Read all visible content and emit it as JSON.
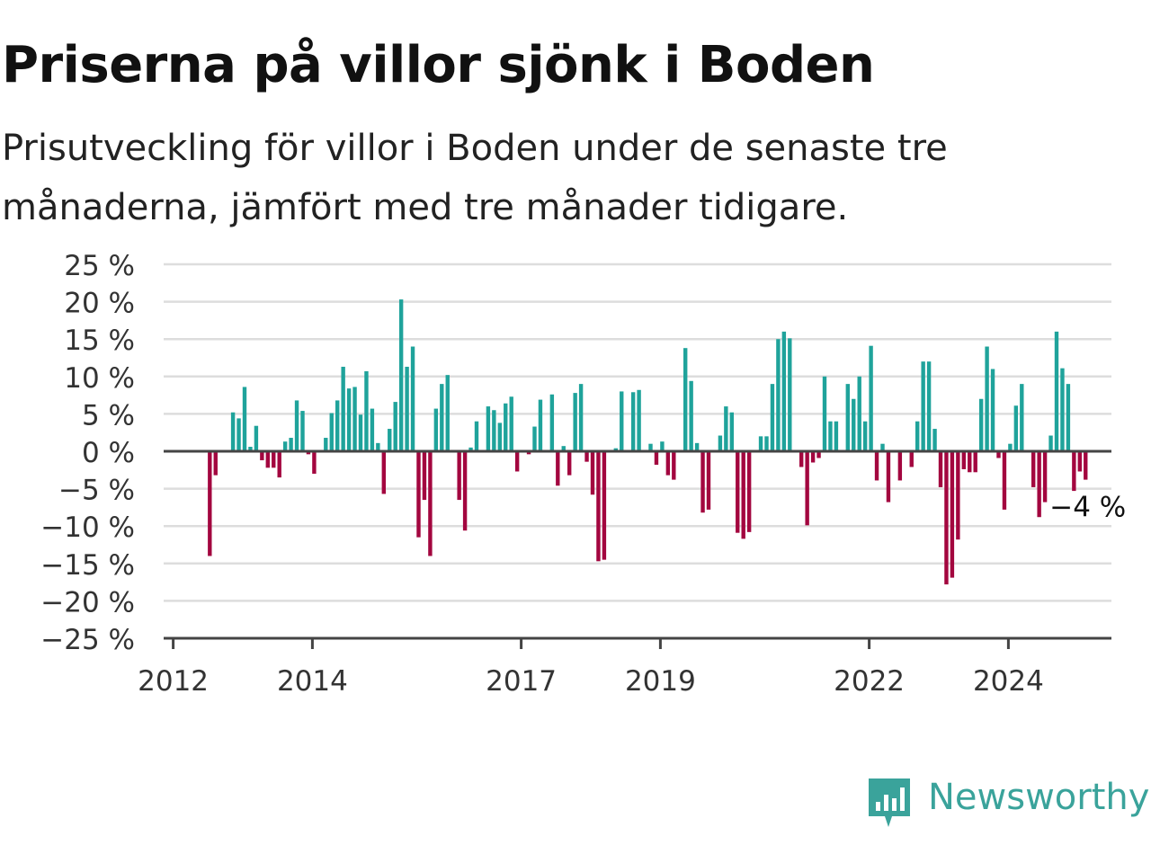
{
  "header": {
    "title": "Priserna på villor sjönk i Boden",
    "subtitle": "Prisutveckling för villor i Boden under de senaste tre månaderna, jämfört med tre månader tidigare."
  },
  "brand": {
    "name": "Newsworthy",
    "icon": "newsworthy-logo-icon"
  },
  "colors": {
    "positive": "#1fa39b",
    "negative": "#a3063f",
    "grid": "#dddddd",
    "zero": "#444444"
  },
  "chart_data": {
    "type": "bar",
    "x_start": "2012-01",
    "x_interval": "month",
    "x_ticks": [
      "2012",
      "2014",
      "2017",
      "2019",
      "2022",
      "2024"
    ],
    "y_ticks": [
      "25 %",
      "20 %",
      "15 %",
      "10 %",
      "5 %",
      "0 %",
      "−5 %",
      "−10 %",
      "−15 %",
      "−20 %",
      "−25 %"
    ],
    "ylim": [
      -25,
      25
    ],
    "grid": true,
    "end_label": "−4 %",
    "values": [
      0,
      0,
      0,
      0,
      0,
      0,
      -14,
      -3.2,
      0,
      0,
      5.2,
      4.4,
      8.6,
      0.6,
      3.4,
      -1.2,
      -2.2,
      -2.2,
      -3.5,
      1.3,
      1.8,
      6.8,
      5.4,
      -0.4,
      -3,
      0,
      1.8,
      5.1,
      6.8,
      11.3,
      8.4,
      8.6,
      4.9,
      10.7,
      5.7,
      1.1,
      -5.7,
      3,
      6.6,
      20.3,
      11.3,
      14,
      -11.5,
      -6.5,
      -14,
      5.7,
      9,
      10.2,
      0,
      -6.5,
      -10.6,
      0.5,
      4,
      0,
      6,
      5.5,
      3.8,
      6.4,
      7.3,
      -2.7,
      0,
      -0.4,
      3.3,
      6.9,
      0,
      7.6,
      -4.6,
      0.7,
      -3.2,
      7.8,
      9,
      -1.4,
      -5.8,
      -14.7,
      -14.5,
      0,
      0.4,
      8,
      0,
      7.9,
      8.2,
      0,
      1,
      -1.8,
      1.3,
      -3.2,
      -3.8,
      0,
      13.8,
      9.4,
      1.1,
      -8.2,
      -7.8,
      0,
      2.1,
      6,
      5.2,
      -10.9,
      -11.7,
      -10.8,
      0,
      2,
      2,
      9,
      15,
      16,
      15.1,
      0,
      -2.1,
      -9.9,
      -1.5,
      -0.9,
      10,
      4,
      4,
      0,
      9,
      7,
      10,
      4,
      14.1,
      -3.9,
      1,
      -6.8,
      0,
      -3.9,
      0,
      -2.1,
      4,
      12,
      12,
      3,
      -4.8,
      -17.8,
      -16.9,
      -11.8,
      -2.4,
      -2.8,
      -2.8,
      7,
      14,
      11,
      -0.9,
      -7.8,
      1,
      6.1,
      9,
      0,
      -4.8,
      -8.8,
      -6.8,
      2.1,
      16,
      11.1,
      9,
      -5.3,
      -2.7,
      -3.8
    ]
  }
}
